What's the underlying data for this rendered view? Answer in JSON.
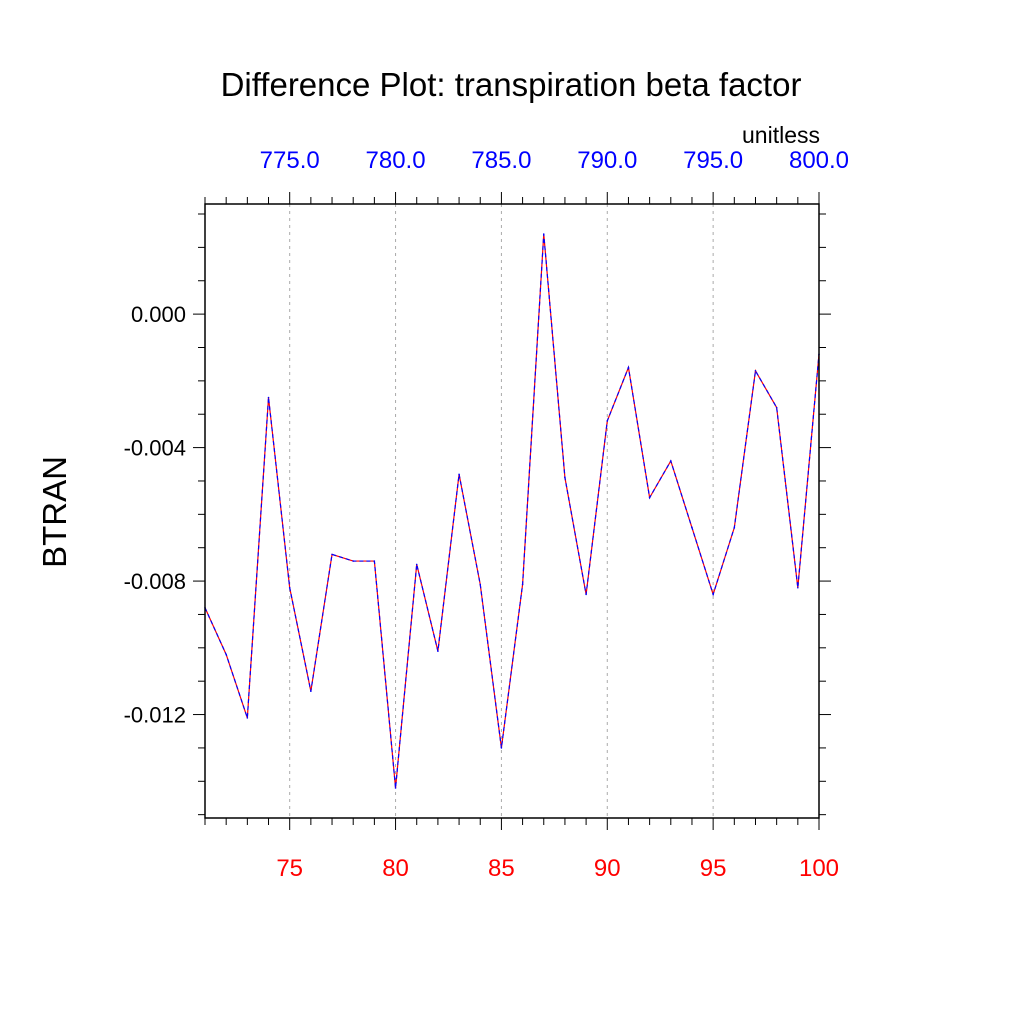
{
  "colors": {
    "axis": "#000000",
    "bottom_ticks": "#ff0000",
    "top_ticks": "#0000ff",
    "line_red": "#ff0000",
    "line_blue": "#0000ff",
    "grid": "#aaaaaa"
  },
  "chart_data": {
    "type": "line",
    "title": "Difference Plot: transpiration beta factor",
    "units": "unitless",
    "ylabel": "BTRAN",
    "xlabel": "",
    "grid": true,
    "xlim": [
      71,
      100
    ],
    "ylim": [
      -0.0151,
      0.0033
    ],
    "x_ticks": [
      75,
      80,
      85,
      90,
      95,
      100
    ],
    "x_tick_labels": [
      "75",
      "80",
      "85",
      "90",
      "95",
      "100"
    ],
    "x_top_ticks": [
      75,
      80,
      85,
      90,
      95,
      100
    ],
    "x_top_tick_labels": [
      "775.0",
      "780.0",
      "785.0",
      "790.0",
      "795.0",
      "800.0"
    ],
    "y_ticks": [
      0.0,
      -0.004,
      -0.008,
      -0.012
    ],
    "y_tick_labels": [
      "0.000",
      "-0.004",
      "-0.008",
      "-0.012"
    ],
    "x": [
      71,
      72,
      73,
      74,
      75,
      76,
      77,
      78,
      79,
      80,
      81,
      82,
      83,
      84,
      85,
      86,
      87,
      88,
      89,
      90,
      91,
      92,
      93,
      94,
      95,
      96,
      97,
      98,
      99,
      100
    ],
    "series": [
      {
        "values": [
          -0.0088,
          -0.0102,
          -0.0121,
          -0.0025,
          -0.0082,
          -0.0113,
          -0.0072,
          -0.0074,
          -0.0074,
          -0.0142,
          -0.0075,
          -0.0101,
          -0.0048,
          -0.0081,
          -0.013,
          -0.0081,
          0.0024,
          -0.0049,
          -0.0084,
          -0.0032,
          -0.0016,
          -0.0055,
          -0.0044,
          -0.0064,
          -0.0084,
          -0.0064,
          -0.0017,
          -0.0028,
          -0.0082,
          -0.0012
        ]
      }
    ]
  }
}
